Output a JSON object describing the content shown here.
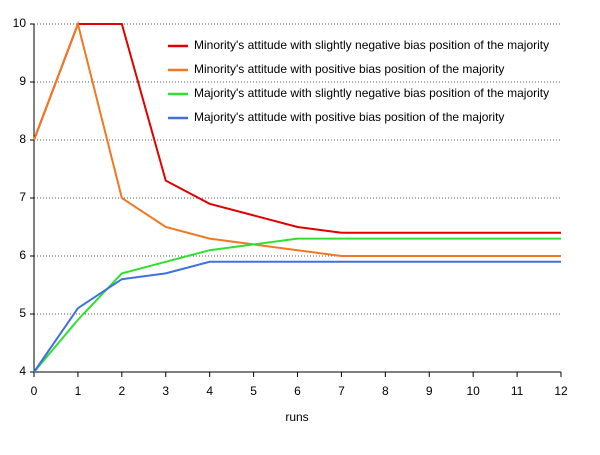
{
  "chart_data": {
    "type": "line",
    "x_label": "runs",
    "x": [
      0,
      1,
      2,
      3,
      4,
      5,
      6,
      7,
      8,
      9,
      10,
      11,
      12
    ],
    "series": [
      {
        "name": "Minority's attitude with slightly negative bias position of the majority",
        "color": "#e00000",
        "values": [
          8,
          10,
          10,
          7.3,
          6.9,
          6.7,
          6.5,
          6.4,
          6.4,
          6.4,
          6.4,
          6.4,
          6.4
        ]
      },
      {
        "name": "Minority's attitude with positive bias position of the majority",
        "color": "#f07820",
        "values": [
          8,
          10,
          7,
          6.5,
          6.3,
          6.2,
          6.1,
          6.0,
          6.0,
          6.0,
          6.0,
          6.0,
          6.0
        ]
      },
      {
        "name": "Majority's attitude with slightly negative bias position of the majority",
        "color": "#30e030",
        "values": [
          4,
          4.9,
          5.7,
          5.9,
          6.1,
          6.2,
          6.3,
          6.3,
          6.3,
          6.3,
          6.3,
          6.3,
          6.3
        ]
      },
      {
        "name": "Majority's attitude with positive bias position of the majority",
        "color": "#4070e0",
        "values": [
          4,
          5.1,
          5.6,
          5.7,
          5.9,
          5.9,
          5.9,
          5.9,
          5.9,
          5.9,
          5.9,
          5.9,
          5.9
        ]
      }
    ],
    "xlim": [
      0,
      12
    ],
    "xticks": [
      0,
      1,
      2,
      3,
      4,
      5,
      6,
      7,
      8,
      9,
      10,
      11,
      12
    ],
    "ylim": [
      4,
      10
    ],
    "yticks": [
      4,
      5,
      6,
      7,
      8,
      9,
      10
    ],
    "grid": true,
    "legend": "upper right"
  }
}
